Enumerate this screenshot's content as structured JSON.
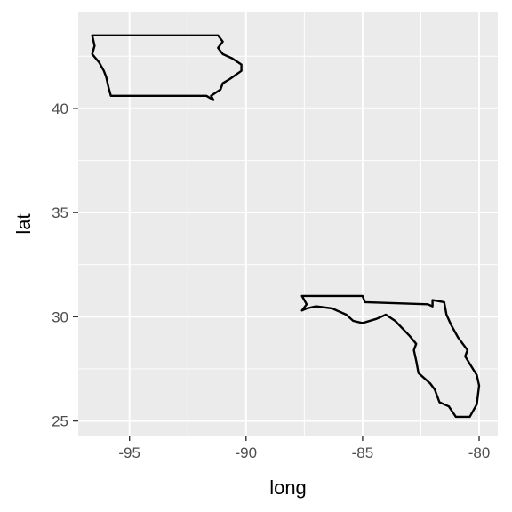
{
  "chart_data": {
    "type": "map",
    "xlabel": "long",
    "ylabel": "lat",
    "xlim": [
      -97.2,
      -79.2
    ],
    "ylim": [
      24.3,
      44.6
    ],
    "x_ticks": [
      -95,
      -90,
      -85,
      -80
    ],
    "y_ticks": [
      25,
      30,
      35,
      40
    ],
    "x_tick_labels": [
      "-95",
      "-90",
      "-85",
      "-80"
    ],
    "y_tick_labels": [
      "25",
      "30",
      "35",
      "40"
    ],
    "grid": true,
    "series": [
      {
        "region": "iowa",
        "points": [
          [
            -96.6,
            43.5
          ],
          [
            -91.2,
            43.5
          ],
          [
            -91.0,
            43.2
          ],
          [
            -91.2,
            42.9
          ],
          [
            -91.0,
            42.6
          ],
          [
            -90.6,
            42.4
          ],
          [
            -90.2,
            42.1
          ],
          [
            -90.2,
            41.8
          ],
          [
            -90.7,
            41.4
          ],
          [
            -91.0,
            41.2
          ],
          [
            -91.1,
            40.9
          ],
          [
            -91.5,
            40.6
          ],
          [
            -91.4,
            40.4
          ],
          [
            -91.7,
            40.6
          ],
          [
            -95.8,
            40.6
          ],
          [
            -95.9,
            41.0
          ],
          [
            -96.0,
            41.5
          ],
          [
            -96.1,
            41.8
          ],
          [
            -96.3,
            42.2
          ],
          [
            -96.6,
            42.6
          ],
          [
            -96.5,
            43.0
          ],
          [
            -96.6,
            43.5
          ]
        ]
      },
      {
        "region": "florida",
        "points": [
          [
            -87.6,
            31.0
          ],
          [
            -85.0,
            31.0
          ],
          [
            -84.9,
            30.7
          ],
          [
            -82.2,
            30.6
          ],
          [
            -82.0,
            30.5
          ],
          [
            -82.0,
            30.8
          ],
          [
            -81.5,
            30.7
          ],
          [
            -81.4,
            30.1
          ],
          [
            -81.2,
            29.6
          ],
          [
            -80.9,
            29.0
          ],
          [
            -80.5,
            28.4
          ],
          [
            -80.6,
            28.1
          ],
          [
            -80.1,
            27.2
          ],
          [
            -80.0,
            26.7
          ],
          [
            -80.1,
            25.8
          ],
          [
            -80.4,
            25.2
          ],
          [
            -81.0,
            25.2
          ],
          [
            -81.3,
            25.7
          ],
          [
            -81.7,
            25.9
          ],
          [
            -81.9,
            26.5
          ],
          [
            -82.1,
            26.8
          ],
          [
            -82.6,
            27.3
          ],
          [
            -82.7,
            27.9
          ],
          [
            -82.8,
            28.4
          ],
          [
            -82.7,
            28.7
          ],
          [
            -83.0,
            29.1
          ],
          [
            -83.6,
            29.8
          ],
          [
            -84.0,
            30.1
          ],
          [
            -84.4,
            29.9
          ],
          [
            -85.0,
            29.7
          ],
          [
            -85.4,
            29.8
          ],
          [
            -85.7,
            30.1
          ],
          [
            -86.3,
            30.4
          ],
          [
            -87.0,
            30.5
          ],
          [
            -87.4,
            30.4
          ],
          [
            -87.6,
            30.3
          ],
          [
            -87.4,
            30.6
          ],
          [
            -87.6,
            31.0
          ]
        ]
      }
    ]
  }
}
